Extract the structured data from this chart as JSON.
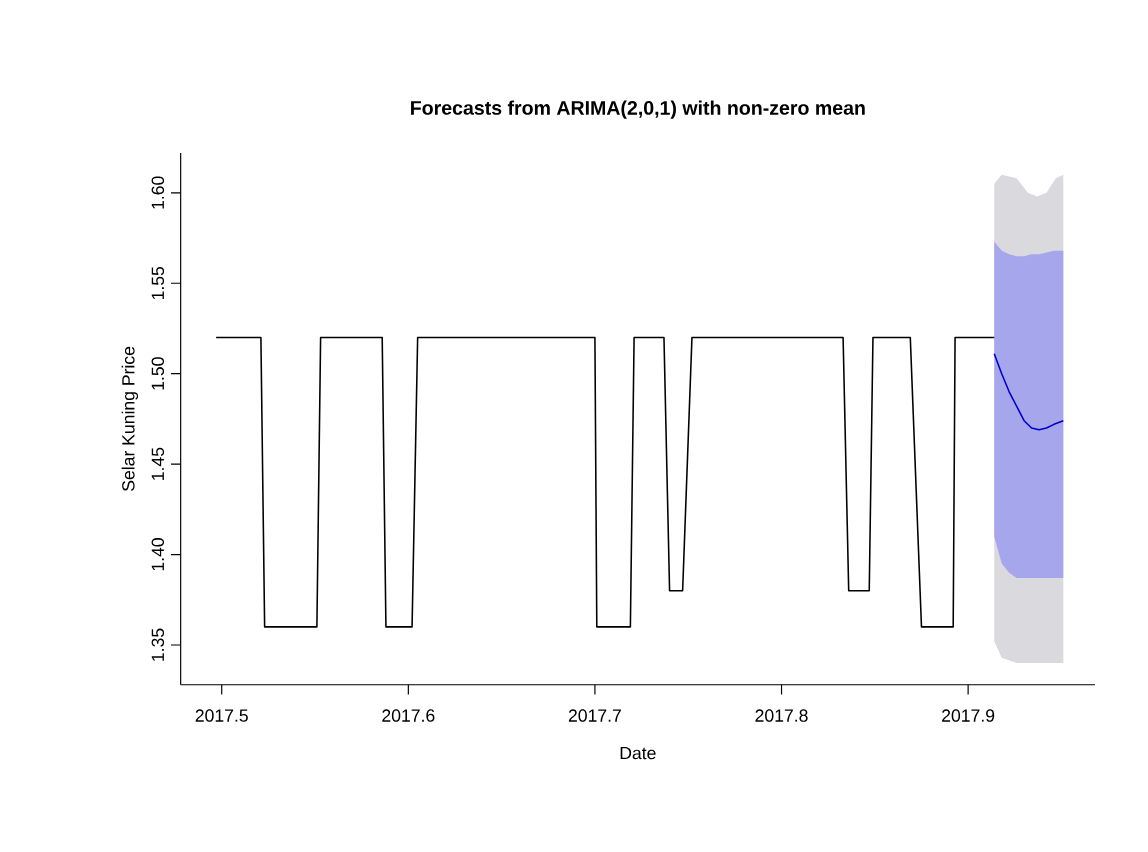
{
  "chart_data": {
    "type": "line",
    "title": "Forecasts from ARIMA(2,0,1) with non-zero mean",
    "xlabel": "Date",
    "ylabel": "Selar Kuning Price",
    "xlim": [
      2017.478,
      2017.968
    ],
    "ylim": [
      1.328,
      1.622
    ],
    "xticks": [
      2017.5,
      2017.6,
      2017.7,
      2017.8,
      2017.9
    ],
    "yticks": [
      1.35,
      {
        "value": 1.4,
        "label": "1.40"
      },
      1.45,
      {
        "value": 1.5,
        "label": "1.50"
      },
      1.55,
      {
        "value": 1.6,
        "label": "1.60"
      }
    ],
    "series": [
      {
        "color": "#d9d9de",
        "x": [
          2017.914,
          2017.918,
          2017.926,
          2017.932,
          2017.937,
          2017.942,
          2017.947,
          2017.951
        ],
        "values": [
          null,
          null,
          null,
          null,
          null,
          null,
          null,
          null
        ],
        "lower": [
          1.352,
          1.343,
          1.34,
          1.34,
          1.34,
          1.34,
          1.34,
          1.34
        ],
        "upper": [
          1.605,
          1.61,
          1.608,
          1.6,
          1.598,
          1.6,
          1.608,
          1.61
        ]
      },
      {
        "color": "#0000cc",
        "x": [
          2017.914,
          2017.918,
          2017.922,
          2017.926,
          2017.93,
          2017.934,
          2017.938,
          2017.942,
          2017.946,
          2017.951
        ],
        "values": [
          1.511,
          1.5,
          1.49,
          1.482,
          1.474,
          1.47,
          1.469,
          1.47,
          1.472,
          1.474
        ],
        "lower": [
          1.41,
          1.395,
          1.39,
          1.387,
          1.387,
          1.387,
          1.387,
          1.387,
          1.387,
          1.387
        ],
        "upper": [
          1.573,
          1.568,
          1.566,
          1.565,
          1.565,
          1.566,
          1.566,
          1.567,
          1.568,
          1.568
        ]
      },
      {
        "color": "#000000",
        "x": [
          2017.497,
          2017.521,
          2017.523,
          2017.551,
          2017.553,
          2017.586,
          2017.588,
          2017.602,
          2017.605,
          2017.7,
          2017.701,
          2017.719,
          2017.721,
          2017.737,
          2017.74,
          2017.747,
          2017.752,
          2017.833,
          2017.836,
          2017.847,
          2017.849,
          2017.869,
          2017.875,
          2017.892,
          2017.893,
          2017.914
        ],
        "values": [
          1.52,
          1.52,
          1.36,
          1.36,
          1.52,
          1.52,
          1.36,
          1.36,
          1.52,
          1.52,
          1.36,
          1.36,
          1.52,
          1.52,
          1.38,
          1.38,
          1.52,
          1.52,
          1.38,
          1.38,
          1.52,
          1.52,
          1.36,
          1.36,
          1.52,
          1.52
        ]
      }
    ]
  }
}
